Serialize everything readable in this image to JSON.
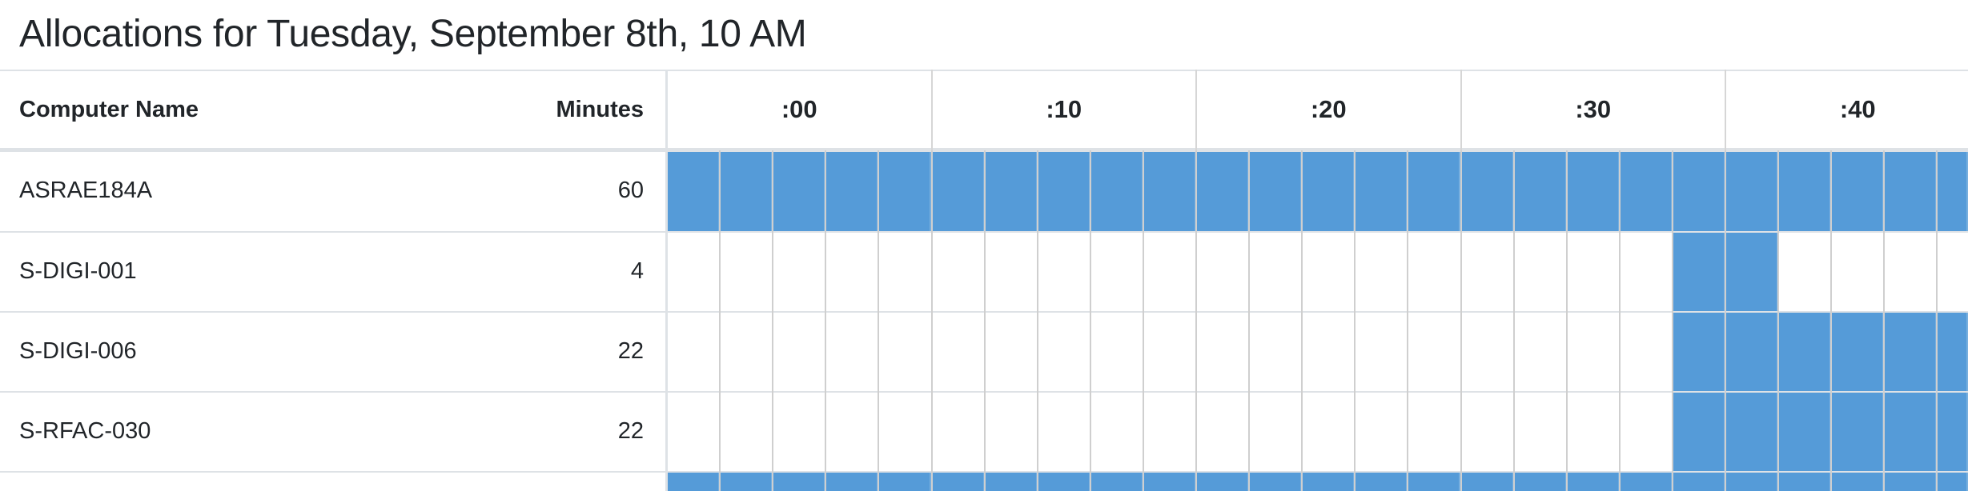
{
  "page": {
    "title": "Allocations for Tuesday, September 8th, 10 AM"
  },
  "table": {
    "columns": {
      "computer_name": "Computer Name",
      "minutes": "Minutes"
    },
    "time_headers": [
      ":00",
      ":10",
      ":20",
      ":30",
      ":40"
    ],
    "rows": [
      {
        "name": "ASRAE184A",
        "minutes": "60",
        "active_slots": [
          0,
          1,
          2,
          3,
          4,
          5,
          6,
          7,
          8,
          9,
          10,
          11,
          12,
          13,
          14,
          15,
          16,
          17,
          18,
          19,
          20,
          21,
          22,
          23,
          24
        ]
      },
      {
        "name": "S-DIGI-001",
        "minutes": "4",
        "active_slots": [
          19,
          20
        ]
      },
      {
        "name": "S-DIGI-006",
        "minutes": "22",
        "active_slots": [
          19,
          20,
          21,
          22,
          23,
          24
        ]
      },
      {
        "name": "S-RFAC-030",
        "minutes": "22",
        "active_slots": [
          19,
          20,
          21,
          22,
          23,
          24
        ]
      },
      {
        "name": "",
        "minutes": "",
        "active_slots": [
          0,
          1,
          2,
          3,
          4,
          5,
          6,
          7,
          8,
          9,
          10,
          11,
          12,
          13,
          14,
          15,
          16,
          17,
          18,
          19,
          20,
          21,
          22,
          23,
          24
        ]
      }
    ]
  },
  "colors": {
    "allocation": "#559bd8",
    "grid_line": "#dee2e6",
    "text": "#212529"
  }
}
